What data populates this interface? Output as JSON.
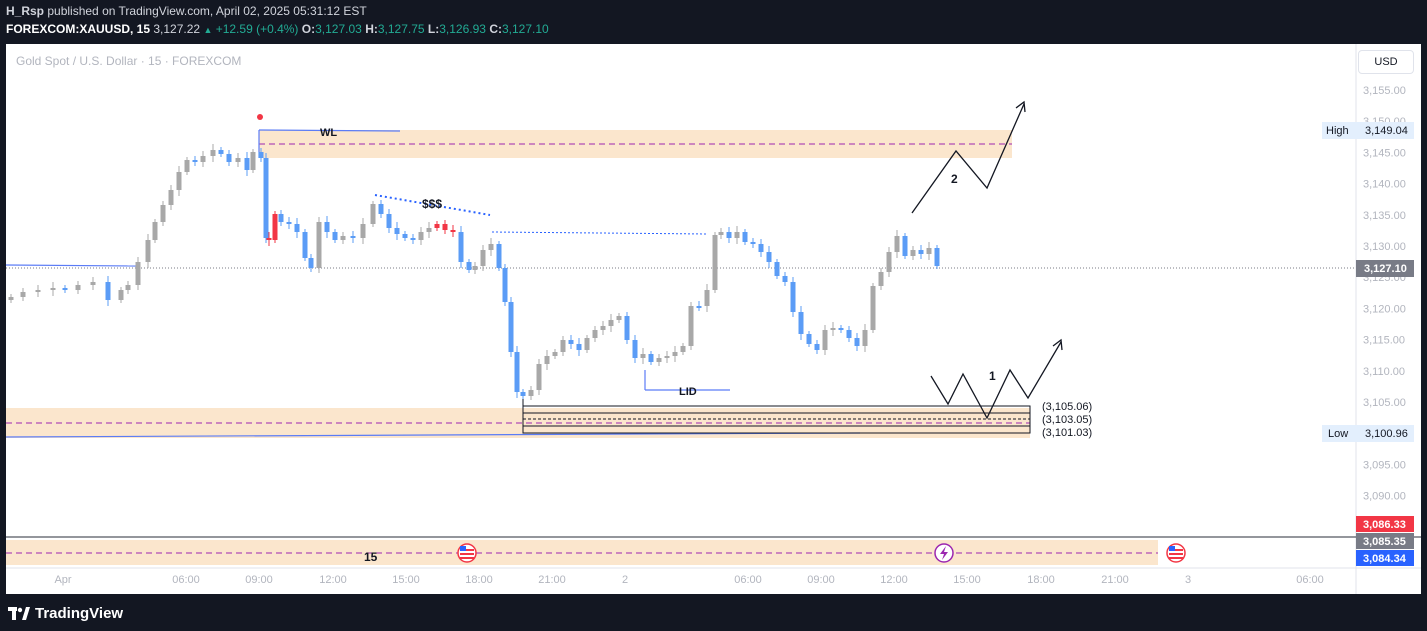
{
  "header": {
    "author": "H_Rsp",
    "published_text": "published on TradingView.com, April 02, 2025 05:31:12 EST",
    "symbol": "FOREXCOM:XAUUSD, 15",
    "last": "3,127.22",
    "change": "+12.59 (+0.4%)",
    "open_label": "O:",
    "open": "3,127.03",
    "high_label": "H:",
    "high": "3,127.75",
    "low_label": "L:",
    "low": "3,126.93",
    "close_label": "C:",
    "close": "3,127.10"
  },
  "chart": {
    "title": "Gold Spot / U.S. Dollar · 15 · FOREXCOM",
    "currency_button": "USD",
    "price_axis": [
      "3,155.00",
      "3,150.00",
      "3,145.00",
      "3,140.00",
      "3,135.00",
      "3,130.00",
      "3,125.00",
      "3,120.00",
      "3,115.00",
      "3,110.00",
      "3,105.00",
      "3,100.00",
      "3,095.00",
      "3,090.00"
    ],
    "time_axis": [
      "Apr",
      "06:00",
      "09:00",
      "12:00",
      "15:00",
      "18:00",
      "21:00",
      "2",
      "06:00",
      "09:00",
      "12:00",
      "15:00",
      "18:00",
      "21:00",
      "3",
      "06:00"
    ],
    "current_price": "3,127.10",
    "high_label": "High",
    "high_value": "3,149.04",
    "low_label": "Low",
    "low_value": "3,100.96",
    "bottom_tags": [
      "3,086.33",
      "3,085.35",
      "3,084.34"
    ],
    "bottom_tag_colors": [
      "#f23645",
      "#787b86",
      "#2962ff"
    ],
    "up_color": "#a8a8a8",
    "down_color": "#5b9cf6",
    "red_color": "#f23645"
  },
  "annotations": {
    "wl": "WL",
    "sss": "$$$",
    "lid": "LID",
    "scenario_1": "1",
    "scenario_2": "2",
    "level_1": "(3,105.06)",
    "level_2": "(3,103.05)",
    "level_3": "(3,101.03)",
    "bottom_zone_label": "15"
  },
  "footer": {
    "brand": "TradingView"
  }
}
